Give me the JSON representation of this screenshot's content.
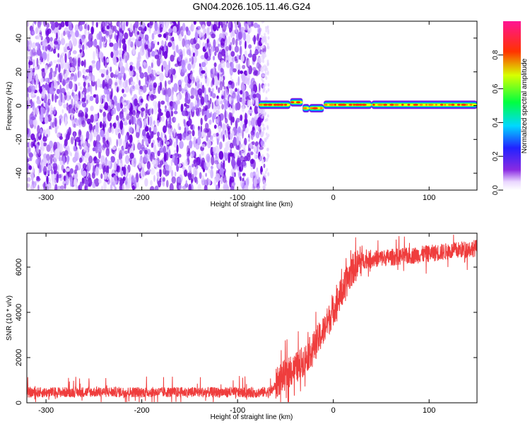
{
  "title": "GN04.2026.105.11.46.G24",
  "chart_data": [
    {
      "type": "heatmap",
      "xlabel": "Height of straight line (km)",
      "ylabel": "Frequency (Hz)",
      "xlim": [
        -320,
        150
      ],
      "ylim": [
        -50,
        50
      ],
      "x_ticks": [
        -300,
        -200,
        -100,
        0,
        100
      ],
      "y_ticks": [
        -40,
        -20,
        0,
        20,
        40
      ],
      "colorbar": {
        "label": "Normalized spectral amplitude",
        "range": [
          0,
          1
        ],
        "ticks": [
          "0.0",
          "0.2",
          "0.4",
          "0.6",
          "0.8"
        ]
      },
      "regions": {
        "noise_extent_x": [
          -320,
          -72
        ],
        "signal_start_x": -78,
        "signal_segments": [
          {
            "x": [
              -78,
              -45
            ],
            "freq": 0.5
          },
          {
            "x": [
              -45,
              -32
            ],
            "freq": 2.0
          },
          {
            "x": [
              -32,
              -25
            ],
            "freq": -1.5
          },
          {
            "x": [
              -25,
              -10
            ],
            "freq": -1.5
          },
          {
            "x": [
              -10,
              40
            ],
            "freq": 0.5
          },
          {
            "x": [
              40,
              150
            ],
            "freq": 0.5
          }
        ]
      },
      "grid": false
    },
    {
      "type": "line",
      "xlabel": "Height of straight line (km)",
      "ylabel": "SNR (10 * v/v)",
      "xlim": [
        -320,
        150
      ],
      "ylim": [
        0,
        7500
      ],
      "x_ticks": [
        -300,
        -200,
        -100,
        0,
        100
      ],
      "y_ticks": [
        0,
        2000,
        4000,
        6000
      ],
      "series": [
        {
          "color": "#ee3333",
          "x": [
            -320,
            -300,
            -250,
            -200,
            -150,
            -100,
            -80,
            -65,
            -55,
            -40,
            -30,
            -20,
            -10,
            0,
            10,
            20,
            30,
            50,
            80,
            100,
            120,
            150
          ],
          "values": [
            450,
            460,
            480,
            470,
            470,
            460,
            450,
            500,
            1100,
            1500,
            1900,
            2500,
            3200,
            4100,
            5000,
            5900,
            6300,
            6400,
            6500,
            6600,
            6700,
            6850
          ]
        }
      ],
      "grid": false
    }
  ]
}
